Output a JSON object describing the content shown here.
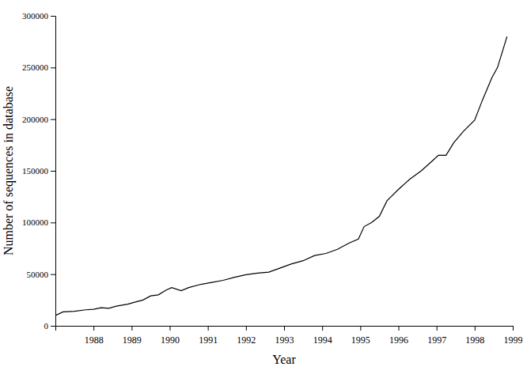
{
  "chart_data": {
    "type": "line",
    "x_label": "Year",
    "y_label": "Number of sequences in database",
    "color": "#000000",
    "x": [
      1987.0,
      1987.2,
      1987.5,
      1987.8,
      1988.0,
      1988.2,
      1988.4,
      1988.6,
      1988.9,
      1989.1,
      1989.3,
      1989.5,
      1989.7,
      1989.9,
      1990.05,
      1990.3,
      1990.5,
      1990.8,
      1991.1,
      1991.4,
      1991.7,
      1992.0,
      1992.3,
      1992.6,
      1992.9,
      1993.2,
      1993.5,
      1993.8,
      1994.1,
      1994.4,
      1994.7,
      1994.95,
      1995.1,
      1995.3,
      1995.5,
      1995.7,
      1996.0,
      1996.3,
      1996.6,
      1996.9,
      1997.05,
      1997.25,
      1997.45,
      1997.7,
      1998.0,
      1998.2,
      1998.45,
      1998.6,
      1998.85
    ],
    "values": [
      10000,
      13500,
      14000,
      15500,
      16000,
      17500,
      17000,
      19000,
      21000,
      23000,
      25000,
      29000,
      30000,
      34500,
      37000,
      34000,
      37000,
      40000,
      42000,
      44000,
      47000,
      49500,
      51000,
      52000,
      56000,
      60000,
      63000,
      68000,
      70000,
      74000,
      80000,
      84000,
      96000,
      100000,
      106000,
      121000,
      132000,
      142000,
      150000,
      160000,
      165000,
      165000,
      177000,
      188000,
      199000,
      218000,
      240000,
      250000,
      280000
    ],
    "xlim": [
      1987,
      1999
    ],
    "xticks": [
      1988,
      1989,
      1990,
      1991,
      1992,
      1993,
      1994,
      1995,
      1996,
      1997,
      1998,
      1999
    ],
    "ylim": [
      0,
      300000
    ],
    "yticks": [
      0,
      50000,
      100000,
      150000,
      200000,
      250000,
      300000
    ],
    "grid": false
  }
}
